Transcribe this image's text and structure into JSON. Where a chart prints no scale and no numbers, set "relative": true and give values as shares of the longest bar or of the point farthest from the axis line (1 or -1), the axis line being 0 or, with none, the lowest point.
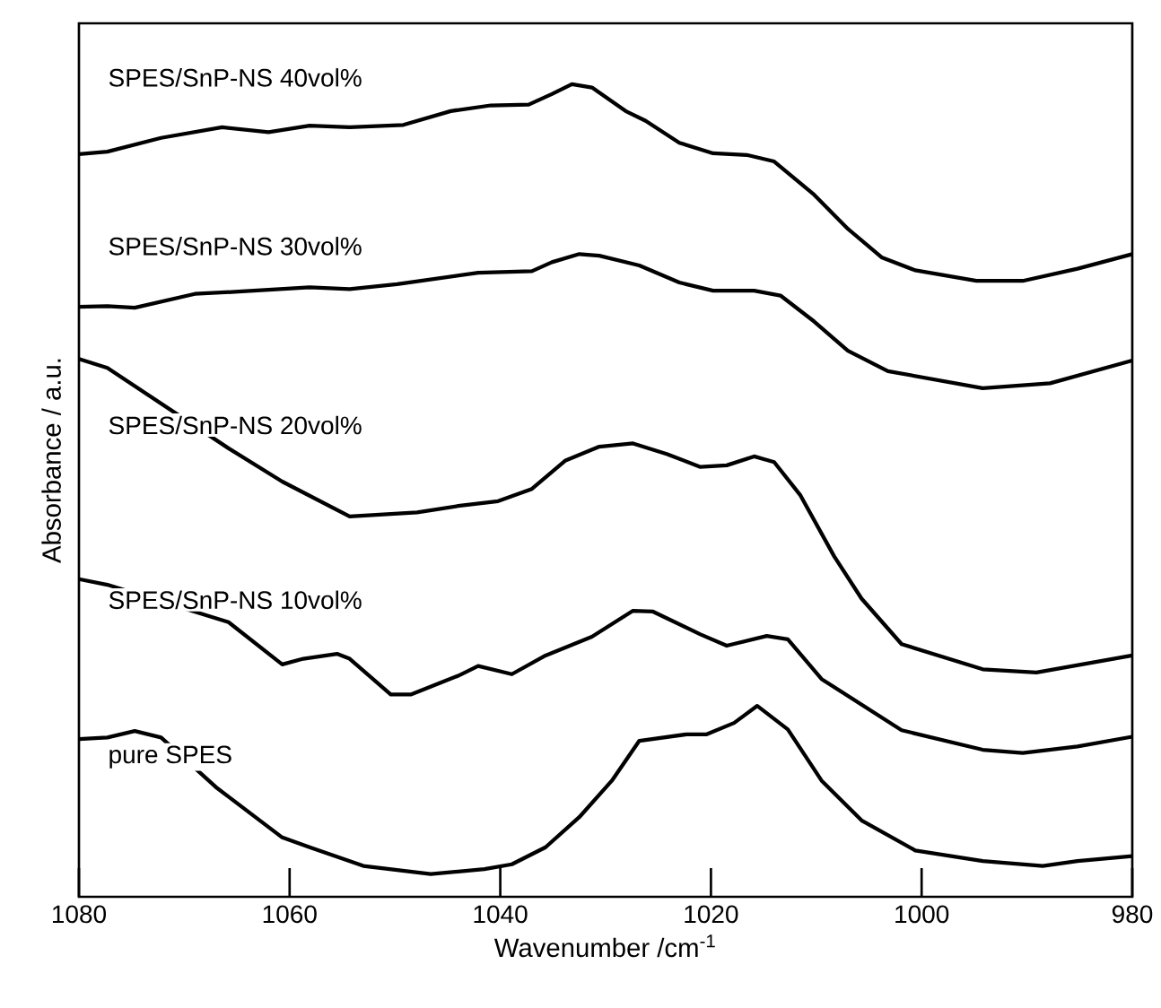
{
  "chart_data": {
    "type": "line",
    "relative": true,
    "xlabel": "Wavenumber /cm$^{-1}$",
    "ylabel": "Absorbance / a.u.",
    "xlim": [
      1080,
      980
    ],
    "xticks": [
      1080,
      1060,
      1040,
      1020,
      1000,
      980
    ],
    "legend": false,
    "series": [
      {
        "name": "SPES/SnP-NS 40vol%",
        "color": "#000000",
        "x": [
          1080,
          1077.3,
          1072.2,
          1066.4,
          1062.0,
          1058.1,
          1054.3,
          1049.2,
          1044.7,
          1040.9,
          1037.3,
          1035.1,
          1033.2,
          1031.3,
          1028.1,
          1026.2,
          1023.0,
          1019.8,
          1016.6,
          1014.0,
          1010.2,
          1007.0,
          1003.8,
          1000.6,
          994.8,
          990.4,
          985.2,
          980
        ],
        "values": [
          0.914,
          0.917,
          0.934,
          0.947,
          0.941,
          0.949,
          0.947,
          0.95,
          0.967,
          0.974,
          0.975,
          0.988,
          1.0,
          0.996,
          0.967,
          0.955,
          0.928,
          0.915,
          0.913,
          0.905,
          0.864,
          0.822,
          0.787,
          0.771,
          0.758,
          0.758,
          0.773,
          0.791
        ]
      },
      {
        "name": "SPES/SnP-NS 30vol%",
        "color": "#000000",
        "x": [
          1080,
          1077.3,
          1074.7,
          1069.0,
          1064.5,
          1058.1,
          1054.3,
          1049.8,
          1042.1,
          1037.0,
          1035.1,
          1032.5,
          1030.6,
          1026.8,
          1023.0,
          1019.8,
          1015.9,
          1013.4,
          1010.2,
          1007.0,
          1003.2,
          994.2,
          987.8,
          980
        ],
        "values": [
          0.726,
          0.727,
          0.725,
          0.742,
          0.745,
          0.75,
          0.748,
          0.754,
          0.768,
          0.77,
          0.781,
          0.791,
          0.789,
          0.777,
          0.756,
          0.746,
          0.746,
          0.74,
          0.708,
          0.672,
          0.647,
          0.626,
          0.632,
          0.66
        ]
      },
      {
        "name": "SPES/SnP-NS 20vol%",
        "color": "#000000",
        "x": [
          1080,
          1077.3,
          1065.8,
          1060.7,
          1054.3,
          1047.9,
          1044.0,
          1040.2,
          1037.0,
          1033.8,
          1030.6,
          1027.4,
          1024.2,
          1021.0,
          1018.5,
          1015.9,
          1014.0,
          1011.5,
          1008.3,
          1005.7,
          1001.9,
          994.2,
          989.1,
          980
        ],
        "values": [
          0.662,
          0.651,
          0.552,
          0.511,
          0.468,
          0.473,
          0.481,
          0.487,
          0.502,
          0.537,
          0.554,
          0.558,
          0.545,
          0.529,
          0.531,
          0.542,
          0.535,
          0.494,
          0.419,
          0.367,
          0.311,
          0.28,
          0.276,
          0.297
        ]
      },
      {
        "name": "SPES/SnP-NS 10vol%",
        "color": "#000000",
        "x": [
          1080,
          1077.3,
          1065.8,
          1060.7,
          1058.7,
          1055.5,
          1054.3,
          1050.4,
          1048.5,
          1044.0,
          1042.1,
          1038.9,
          1035.7,
          1031.3,
          1027.4,
          1025.5,
          1021.0,
          1018.5,
          1014.7,
          1012.7,
          1009.5,
          1001.9,
          994.2,
          990.4,
          985.2,
          980
        ],
        "values": [
          0.391,
          0.384,
          0.338,
          0.286,
          0.293,
          0.299,
          0.293,
          0.249,
          0.249,
          0.272,
          0.284,
          0.274,
          0.297,
          0.32,
          0.352,
          0.351,
          0.323,
          0.309,
          0.321,
          0.317,
          0.268,
          0.205,
          0.181,
          0.177,
          0.185,
          0.197
        ]
      },
      {
        "name": "pure SPES",
        "color": "#000000",
        "x": [
          1080,
          1077.3,
          1074.7,
          1072.2,
          1067.0,
          1060.7,
          1058.1,
          1053.0,
          1046.6,
          1041.5,
          1038.9,
          1035.7,
          1032.5,
          1029.4,
          1026.8,
          1022.3,
          1020.4,
          1017.8,
          1015.6,
          1012.7,
          1009.5,
          1005.7,
          1000.6,
          994.2,
          988.5,
          985.2,
          980
        ],
        "values": [
          0.194,
          0.196,
          0.204,
          0.196,
          0.135,
          0.073,
          0.061,
          0.038,
          0.028,
          0.034,
          0.04,
          0.061,
          0.098,
          0.143,
          0.192,
          0.2,
          0.2,
          0.214,
          0.235,
          0.206,
          0.143,
          0.094,
          0.057,
          0.044,
          0.038,
          0.044,
          0.05
        ]
      }
    ]
  }
}
